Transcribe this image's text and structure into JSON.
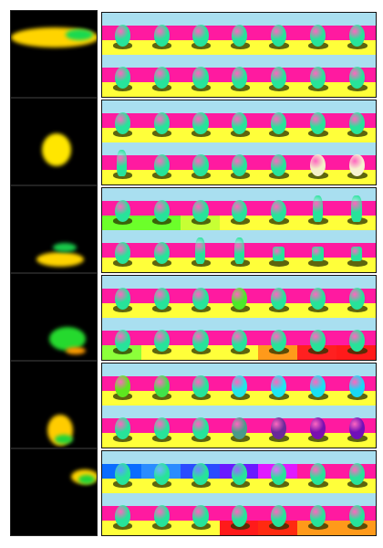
{
  "rows": [
    {
      "left": {
        "bg": "#000000",
        "blobs": [
          {
            "color": "#ffd400"
          },
          {
            "color": "#19d94f"
          }
        ]
      },
      "cells": [
        {
          "sky": "#a9dff0",
          "wall": "#ff1aa0",
          "floor": "#ffff3a",
          "shape": "sphere",
          "obj": "#27e39a"
        },
        {
          "sky": "#a9dff0",
          "wall": "#ff1aa0",
          "floor": "#ffff3a",
          "shape": "sphere",
          "obj": "#27e39a"
        },
        {
          "sky": "#a9dff0",
          "wall": "#ff1aa0",
          "floor": "#ffff3a",
          "shape": "sphere",
          "obj": "#27e39a"
        },
        {
          "sky": "#a9dff0",
          "wall": "#ff1aa0",
          "floor": "#ffff3a",
          "shape": "sphere",
          "obj": "#27e39a"
        },
        {
          "sky": "#a9dff0",
          "wall": "#ff1aa0",
          "floor": "#ffff3a",
          "shape": "sphere",
          "obj": "#27e39a"
        },
        {
          "sky": "#a9dff0",
          "wall": "#ff1aa0",
          "floor": "#ffff3a",
          "shape": "sphere",
          "obj": "#27e39a"
        },
        {
          "sky": "#a9dff0",
          "wall": "#ff1aa0",
          "floor": "#ffff3a",
          "shape": "sphere",
          "obj": "#27e39a"
        },
        {
          "sky": "#a9dff0",
          "wall": "#ff1aa0",
          "floor": "#ffff3a",
          "shape": "sphere",
          "obj": "#27e39a"
        },
        {
          "sky": "#a9dff0",
          "wall": "#ff1aa0",
          "floor": "#ffff3a",
          "shape": "sphere",
          "obj": "#27e39a"
        },
        {
          "sky": "#a9dff0",
          "wall": "#ff1aa0",
          "floor": "#ffff3a",
          "shape": "sphere",
          "obj": "#27e39a"
        },
        {
          "sky": "#a9dff0",
          "wall": "#ff1aa0",
          "floor": "#ffff3a",
          "shape": "sphere",
          "obj": "#27e39a"
        },
        {
          "sky": "#a9dff0",
          "wall": "#ff1aa0",
          "floor": "#ffff3a",
          "shape": "sphere",
          "obj": "#27e39a"
        },
        {
          "sky": "#a9dff0",
          "wall": "#ff1aa0",
          "floor": "#ffff3a",
          "shape": "sphere",
          "obj": "#27e39a"
        },
        {
          "sky": "#a9dff0",
          "wall": "#ff1aa0",
          "floor": "#ffff3a",
          "shape": "sphere",
          "obj": "#27e39a"
        }
      ]
    },
    {
      "left": {
        "bg": "#000000",
        "blobs": [
          {
            "color": "#ffe600"
          }
        ]
      },
      "cells": [
        {
          "sky": "#a9dff0",
          "wall": "#ff1aa0",
          "floor": "#ffff3a",
          "shape": "sphere",
          "obj": "#27e39a"
        },
        {
          "sky": "#a9dff0",
          "wall": "#ff1aa0",
          "floor": "#ffff3a",
          "shape": "sphere",
          "obj": "#27e39a"
        },
        {
          "sky": "#a9dff0",
          "wall": "#ff1aa0",
          "floor": "#ffff3a",
          "shape": "sphere",
          "obj": "#27e39a"
        },
        {
          "sky": "#a9dff0",
          "wall": "#ff1aa0",
          "floor": "#ffff3a",
          "shape": "sphere",
          "obj": "#27e39a"
        },
        {
          "sky": "#a9dff0",
          "wall": "#ff1aa0",
          "floor": "#ffff3a",
          "shape": "sphere",
          "obj": "#27e39a"
        },
        {
          "sky": "#a9dff0",
          "wall": "#ff1aa0",
          "floor": "#ffff3a",
          "shape": "sphere",
          "obj": "#27e39a"
        },
        {
          "sky": "#a9dff0",
          "wall": "#ff1aa0",
          "floor": "#ffff3a",
          "shape": "sphere",
          "obj": "#27e39a"
        },
        {
          "sky": "#a9dff0",
          "wall": "#ff1aa0",
          "floor": "#ffff3a",
          "shape": "cylinder",
          "obj": "#27e39a"
        },
        {
          "sky": "#a9dff0",
          "wall": "#ff1aa0",
          "floor": "#ffff3a",
          "shape": "sphere",
          "obj": "#27e39a"
        },
        {
          "sky": "#a9dff0",
          "wall": "#ff1aa0",
          "floor": "#ffff3a",
          "shape": "sphere",
          "obj": "#27e39a"
        },
        {
          "sky": "#a9dff0",
          "wall": "#ff1aa0",
          "floor": "#ffff3a",
          "shape": "sphere",
          "obj": "#27e39a"
        },
        {
          "sky": "#a9dff0",
          "wall": "#ff1aa0",
          "floor": "#ffff3a",
          "shape": "sphere",
          "obj": "#27e39a"
        },
        {
          "sky": "#a9dff0",
          "wall": "#ff1aa0",
          "floor": "#ffff3a",
          "shape": "sphere",
          "obj": "#f4f0c8"
        },
        {
          "sky": "#a9dff0",
          "wall": "#ff1aa0",
          "floor": "#ffff3a",
          "shape": "sphere",
          "obj": "#f7f2d0"
        }
      ]
    },
    {
      "left": {
        "bg": "#000000",
        "blobs": [
          {
            "color": "#ffd400"
          },
          {
            "color": "#19c94a"
          }
        ]
      },
      "cells": [
        {
          "sky": "#a9dff0",
          "wall": "#ff1aa0",
          "floor": "#6cff2a",
          "shape": "sphere",
          "obj": "#27e39a"
        },
        {
          "sky": "#a9dff0",
          "wall": "#ff1aa0",
          "floor": "#6cff2a",
          "shape": "sphere",
          "obj": "#27e39a"
        },
        {
          "sky": "#a9dff0",
          "wall": "#ff1aa0",
          "floor": "#c7ff34",
          "shape": "sphere",
          "obj": "#27e39a"
        },
        {
          "sky": "#a9dff0",
          "wall": "#ff1aa0",
          "floor": "#ffff3a",
          "shape": "sphere",
          "obj": "#27e39a"
        },
        {
          "sky": "#a9dff0",
          "wall": "#ff1aa0",
          "floor": "#ffff3a",
          "shape": "sphere",
          "obj": "#27e39a"
        },
        {
          "sky": "#a9dff0",
          "wall": "#ff1aa0",
          "floor": "#ffff3a",
          "shape": "cylinder",
          "obj": "#27e39a"
        },
        {
          "sky": "#a9dff0",
          "wall": "#ff1aa0",
          "floor": "#ffff3a",
          "shape": "cylinder",
          "obj": "#27e39a"
        },
        {
          "sky": "#a9dff0",
          "wall": "#ff1aa0",
          "floor": "#ffff3a",
          "shape": "sphere",
          "obj": "#27e39a"
        },
        {
          "sky": "#a9dff0",
          "wall": "#ff1aa0",
          "floor": "#ffff3a",
          "shape": "sphere",
          "obj": "#27e39a"
        },
        {
          "sky": "#a9dff0",
          "wall": "#ff1aa0",
          "floor": "#ffff3a",
          "shape": "cylinder",
          "obj": "#27e39a"
        },
        {
          "sky": "#a9dff0",
          "wall": "#ff1aa0",
          "floor": "#ffff3a",
          "shape": "cylinder",
          "obj": "#27e39a"
        },
        {
          "sky": "#a9dff0",
          "wall": "#ff1aa0",
          "floor": "#ffff3a",
          "shape": "cube",
          "obj": "#27e39a"
        },
        {
          "sky": "#a9dff0",
          "wall": "#ff1aa0",
          "floor": "#ffff3a",
          "shape": "cube",
          "obj": "#27e39a"
        },
        {
          "sky": "#a9dff0",
          "wall": "#ff1aa0",
          "floor": "#ffff3a",
          "shape": "cube",
          "obj": "#27e39a"
        }
      ]
    },
    {
      "left": {
        "bg": "#000000",
        "blobs": [
          {
            "color": "#25d92e"
          },
          {
            "color": "#ff9a00"
          }
        ]
      },
      "cells": [
        {
          "sky": "#a9dff0",
          "wall": "#ff1aa0",
          "floor": "#ffff3a",
          "shape": "sphere",
          "obj": "#27e39a"
        },
        {
          "sky": "#a9dff0",
          "wall": "#ff1aa0",
          "floor": "#ffff3a",
          "shape": "sphere",
          "obj": "#27e39a"
        },
        {
          "sky": "#a9dff0",
          "wall": "#ff1aa0",
          "floor": "#ffff3a",
          "shape": "sphere",
          "obj": "#27e39a"
        },
        {
          "sky": "#a9dff0",
          "wall": "#ff1aa0",
          "floor": "#ffff3a",
          "shape": "sphere",
          "obj": "#4ce82a"
        },
        {
          "sky": "#a9dff0",
          "wall": "#ff1aa0",
          "floor": "#ffff3a",
          "shape": "sphere",
          "obj": "#27e39a"
        },
        {
          "sky": "#a9dff0",
          "wall": "#ff1aa0",
          "floor": "#ffff3a",
          "shape": "sphere",
          "obj": "#27e39a"
        },
        {
          "sky": "#a9dff0",
          "wall": "#ff1aa0",
          "floor": "#ffff3a",
          "shape": "sphere",
          "obj": "#27e39a"
        },
        {
          "sky": "#a9dff0",
          "wall": "#ff1aa0",
          "floor": "#8cff3a",
          "shape": "sphere",
          "obj": "#27e39a"
        },
        {
          "sky": "#a9dff0",
          "wall": "#ff1aa0",
          "floor": "#ffff3a",
          "shape": "sphere",
          "obj": "#27e39a"
        },
        {
          "sky": "#a9dff0",
          "wall": "#ff1aa0",
          "floor": "#ffff3a",
          "shape": "sphere",
          "obj": "#27e39a"
        },
        {
          "sky": "#a9dff0",
          "wall": "#ff1aa0",
          "floor": "#ffff3a",
          "shape": "sphere",
          "obj": "#27e39a"
        },
        {
          "sky": "#a9dff0",
          "wall": "#ff1aa0",
          "floor": "#ff9a1a",
          "shape": "sphere",
          "obj": "#27e39a"
        },
        {
          "sky": "#a9dff0",
          "wall": "#ff1aa0",
          "floor": "#ff2020",
          "shape": "sphere",
          "obj": "#27e39a"
        },
        {
          "sky": "#a9dff0",
          "wall": "#ff1aa0",
          "floor": "#ff1a1a",
          "shape": "sphere",
          "obj": "#27e39a"
        }
      ]
    },
    {
      "left": {
        "bg": "#000000",
        "blobs": [
          {
            "color": "#ffcc00"
          },
          {
            "color": "#1fd43a"
          }
        ]
      },
      "cells": [
        {
          "sky": "#a9dff0",
          "wall": "#ff1aa0",
          "floor": "#ffff3a",
          "shape": "sphere",
          "obj": "#5ee61f"
        },
        {
          "sky": "#a9dff0",
          "wall": "#ff1aa0",
          "floor": "#ffff3a",
          "shape": "sphere",
          "obj": "#40e24a"
        },
        {
          "sky": "#a9dff0",
          "wall": "#ff1aa0",
          "floor": "#ffff3a",
          "shape": "sphere",
          "obj": "#27e39a"
        },
        {
          "sky": "#a9dff0",
          "wall": "#ff1aa0",
          "floor": "#ffff3a",
          "shape": "sphere",
          "obj": "#22e6e6"
        },
        {
          "sky": "#a9dff0",
          "wall": "#ff1aa0",
          "floor": "#ffff3a",
          "shape": "sphere",
          "obj": "#1fe6f0"
        },
        {
          "sky": "#a9dff0",
          "wall": "#ff1aa0",
          "floor": "#ffff3a",
          "shape": "sphere",
          "obj": "#19e0f2"
        },
        {
          "sky": "#a9dff0",
          "wall": "#ff1aa0",
          "floor": "#ffff3a",
          "shape": "sphere",
          "obj": "#19d8f5"
        },
        {
          "sky": "#a9dff0",
          "wall": "#ff1aa0",
          "floor": "#ffff3a",
          "shape": "sphere",
          "obj": "#27e39a"
        },
        {
          "sky": "#a9dff0",
          "wall": "#ff1aa0",
          "floor": "#ffff3a",
          "shape": "sphere",
          "obj": "#27e39a"
        },
        {
          "sky": "#a9dff0",
          "wall": "#ff1aa0",
          "floor": "#ffff3a",
          "shape": "sphere",
          "obj": "#27e39a"
        },
        {
          "sky": "#a9dff0",
          "wall": "#ff1aa0",
          "floor": "#ffff3a",
          "shape": "sphere",
          "obj": "#4a9a8a"
        },
        {
          "sky": "#a9dff0",
          "wall": "#ff1aa0",
          "floor": "#ffff3a",
          "shape": "sphere",
          "obj": "#6a2a9a"
        },
        {
          "sky": "#a9dff0",
          "wall": "#ff1aa0",
          "floor": "#ffff3a",
          "shape": "sphere",
          "obj": "#7a10b0"
        },
        {
          "sky": "#a9dff0",
          "wall": "#ff1aa0",
          "floor": "#ffff3a",
          "shape": "sphere",
          "obj": "#7010b8"
        }
      ]
    },
    {
      "left": {
        "bg": "#000000",
        "blobs": [
          {
            "color": "#ffd400"
          },
          {
            "color": "#1fd43a"
          }
        ]
      },
      "cells": [
        {
          "sky": "#a9dff0",
          "wall": "#0a6cff",
          "floor": "#ffff3a",
          "shape": "sphere",
          "obj": "#27e39a"
        },
        {
          "sky": "#a9dff0",
          "wall": "#2a8cff",
          "floor": "#ffff3a",
          "shape": "sphere",
          "obj": "#27e39a"
        },
        {
          "sky": "#a9dff0",
          "wall": "#2a4cff",
          "floor": "#ffff3a",
          "shape": "sphere",
          "obj": "#27e39a"
        },
        {
          "sky": "#a9dff0",
          "wall": "#6a1aff",
          "floor": "#ffff3a",
          "shape": "sphere",
          "obj": "#27e39a"
        },
        {
          "sky": "#a9dff0",
          "wall": "#e01aff",
          "floor": "#ffff3a",
          "shape": "sphere",
          "obj": "#27e39a"
        },
        {
          "sky": "#a9dff0",
          "wall": "#ff1aa0",
          "floor": "#ffff3a",
          "shape": "sphere",
          "obj": "#27e39a"
        },
        {
          "sky": "#a9dff0",
          "wall": "#ff1aa0",
          "floor": "#ffff3a",
          "shape": "sphere",
          "obj": "#27e39a"
        },
        {
          "sky": "#a9dff0",
          "wall": "#ff1aa0",
          "floor": "#ffff3a",
          "shape": "sphere",
          "obj": "#27e39a"
        },
        {
          "sky": "#a9dff0",
          "wall": "#ff1aa0",
          "floor": "#ffff3a",
          "shape": "sphere",
          "obj": "#27e39a"
        },
        {
          "sky": "#a9dff0",
          "wall": "#ff1aa0",
          "floor": "#ffff3a",
          "shape": "sphere",
          "obj": "#27e39a"
        },
        {
          "sky": "#a9dff0",
          "wall": "#ff1aa0",
          "floor": "#ff1a1a",
          "shape": "sphere",
          "obj": "#27e39a"
        },
        {
          "sky": "#a9dff0",
          "wall": "#ff1aa0",
          "floor": "#ff2a10",
          "shape": "sphere",
          "obj": "#27e39a"
        },
        {
          "sky": "#a9dff0",
          "wall": "#ff1aa0",
          "floor": "#ff9a1a",
          "shape": "sphere",
          "obj": "#27e39a"
        },
        {
          "sky": "#a9dff0",
          "wall": "#ff1aa0",
          "floor": "#ff9a1a",
          "shape": "sphere",
          "obj": "#27e39a"
        }
      ]
    }
  ]
}
